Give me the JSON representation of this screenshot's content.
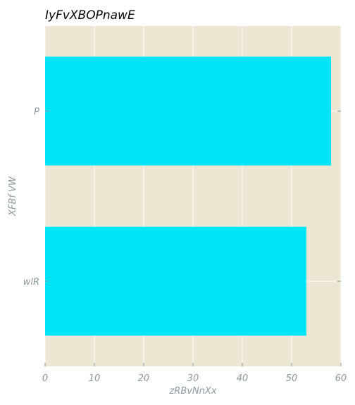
{
  "chart_data": {
    "type": "bar",
    "orientation": "horizontal",
    "title": "IyFvXBOPnawE",
    "xlabel": "zRBvNnXx",
    "ylabel": "XFBf VW",
    "categories": [
      "wlR",
      "P"
    ],
    "series": [
      {
        "values": [
          53,
          58
        ]
      }
    ],
    "xlim": [
      0,
      60
    ],
    "xticks": [
      0,
      10,
      20,
      30,
      40,
      50,
      60
    ],
    "grid": true,
    "colors": {
      "bar": "#00e5f5",
      "plot_background": "#ede6d3",
      "grid": "#ffffff",
      "tick_label": "#8c9aa4",
      "title": "#000000"
    }
  }
}
